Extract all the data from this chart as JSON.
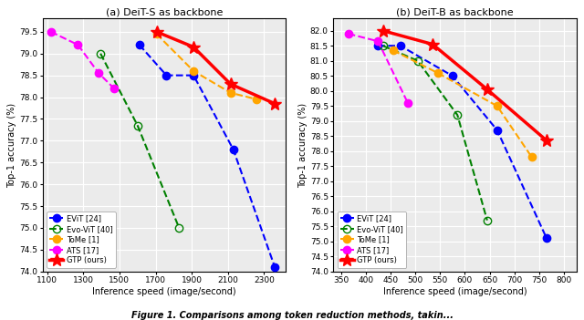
{
  "left": {
    "title": "(a) DeiT-S as backbone",
    "xlabel": "Inference speed (image/second)",
    "ylabel": "Top-1 accuracy (%)",
    "xlim": [
      1075,
      2420
    ],
    "ylim": [
      74.0,
      79.8
    ],
    "xticks": [
      1100,
      1300,
      1500,
      1700,
      1900,
      2100,
      2300
    ],
    "yticks": [
      74.0,
      74.5,
      75.0,
      75.5,
      76.0,
      76.5,
      77.0,
      77.5,
      78.0,
      78.5,
      79.0,
      79.5
    ],
    "series": {
      "EViT [24]": {
        "x": [
          1610,
          1760,
          1910,
          2130,
          2360
        ],
        "y": [
          79.2,
          78.5,
          78.5,
          76.8,
          74.1
        ],
        "color": "blue",
        "marker": "o",
        "linestyle": "--",
        "linewidth": 1.5,
        "markersize": 6,
        "zorder": 3
      },
      "Evo-ViT [40]": {
        "x": [
          1395,
          1600,
          1830
        ],
        "y": [
          79.0,
          77.35,
          75.0
        ],
        "color": "green",
        "marker": "o",
        "linestyle": "--",
        "linewidth": 1.5,
        "markersize": 6,
        "markerfacecolor": "none",
        "zorder": 3
      },
      "ToMe [1]": {
        "x": [
          1705,
          1910,
          2115,
          2260
        ],
        "y": [
          79.45,
          78.6,
          78.1,
          77.95
        ],
        "color": "orange",
        "marker": "o",
        "linestyle": "--",
        "linewidth": 1.5,
        "markersize": 6,
        "zorder": 3
      },
      "ATS [17]": {
        "x": [
          1120,
          1270,
          1385,
          1470
        ],
        "y": [
          79.5,
          79.2,
          78.55,
          78.2
        ],
        "color": "magenta",
        "marker": "o",
        "linestyle": "--",
        "linewidth": 1.5,
        "markersize": 6,
        "zorder": 3
      },
      "GTP (ours)": {
        "x": [
          1705,
          1910,
          2115,
          2360
        ],
        "y": [
          79.5,
          79.15,
          78.3,
          77.85
        ],
        "color": "red",
        "marker": "*",
        "linestyle": "-",
        "linewidth": 2.5,
        "markersize": 10,
        "zorder": 4
      }
    }
  },
  "right": {
    "title": "(b) DeiT-B as backbone",
    "xlabel": "Inference speed (image/second)",
    "ylabel": "Top-1 accuracy (%)",
    "xlim": [
      335,
      825
    ],
    "ylim": [
      74.0,
      82.4
    ],
    "xticks": [
      350,
      400,
      450,
      500,
      550,
      600,
      650,
      700,
      750,
      800
    ],
    "yticks": [
      74.0,
      74.5,
      75.0,
      75.5,
      76.0,
      76.5,
      77.0,
      77.5,
      78.0,
      78.5,
      79.0,
      79.5,
      80.0,
      80.5,
      81.0,
      81.5,
      82.0
    ],
    "series": {
      "EViT [24]": {
        "x": [
          425,
          470,
          575,
          665,
          765
        ],
        "y": [
          81.5,
          81.5,
          80.5,
          78.7,
          75.1
        ],
        "color": "blue",
        "marker": "o",
        "linestyle": "--",
        "linewidth": 1.5,
        "markersize": 6,
        "zorder": 3
      },
      "Evo-ViT [40]": {
        "x": [
          435,
          505,
          585,
          645
        ],
        "y": [
          81.5,
          81.0,
          79.2,
          75.7
        ],
        "color": "green",
        "marker": "o",
        "linestyle": "--",
        "linewidth": 1.5,
        "markersize": 6,
        "markerfacecolor": "none",
        "zorder": 3
      },
      "ToMe [1]": {
        "x": [
          455,
          545,
          665,
          735
        ],
        "y": [
          81.35,
          80.6,
          79.5,
          77.8
        ],
        "color": "orange",
        "marker": "o",
        "linestyle": "--",
        "linewidth": 1.5,
        "markersize": 6,
        "zorder": 3
      },
      "ATS [17]": {
        "x": [
          365,
          425,
          485
        ],
        "y": [
          81.9,
          81.65,
          79.6
        ],
        "color": "magenta",
        "marker": "o",
        "linestyle": "--",
        "linewidth": 1.5,
        "markersize": 6,
        "zorder": 3
      },
      "GTP (ours)": {
        "x": [
          435,
          535,
          645,
          765
        ],
        "y": [
          82.0,
          81.55,
          80.05,
          78.35
        ],
        "color": "red",
        "marker": "*",
        "linestyle": "-",
        "linewidth": 2.5,
        "markersize": 10,
        "zorder": 4
      }
    }
  },
  "figure_caption": "Figure 1. Comparisons among token reduction methods, takin...",
  "legend_order": [
    "EViT [24]",
    "Evo-ViT [40]",
    "ToMe [1]",
    "ATS [17]",
    "GTP (ours)"
  ],
  "bg_color": "#ebebeb",
  "grid_color": "white",
  "title_fontsize": 8,
  "label_fontsize": 7,
  "tick_fontsize": 6.5,
  "legend_fontsize": 6
}
